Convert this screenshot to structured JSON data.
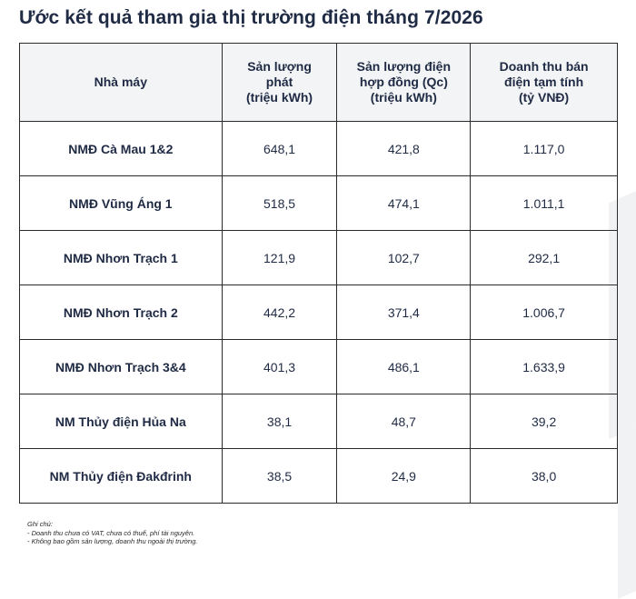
{
  "title": "Ước kết quả tham gia thị trường điện tháng 7/2026",
  "table": {
    "headers": [
      [
        "Nhà máy"
      ],
      [
        "Sản lượng",
        "phát",
        "(triệu kWh)"
      ],
      [
        "Sản lượng điện",
        "hợp đồng (Qc)",
        "(triệu kWh)"
      ],
      [
        "Doanh thu bán",
        "điện tạm tính",
        "(tỷ VNĐ)"
      ]
    ],
    "rows": [
      [
        "NMĐ Cà Mau 1&2",
        "648,1",
        "421,8",
        "1.117,0"
      ],
      [
        "NMĐ Vũng Áng 1",
        "518,5",
        "474,1",
        "1.011,1"
      ],
      [
        "NMĐ Nhơn Trạch 1",
        "121,9",
        "102,7",
        "292,1"
      ],
      [
        "NMĐ Nhơn Trạch 2",
        "442,2",
        "371,4",
        "1.006,7"
      ],
      [
        "NMĐ Nhơn Trạch 3&4",
        "401,3",
        "486,1",
        "1.633,9"
      ],
      [
        "NM Thủy điện Hủa Na",
        "38,1",
        "48,7",
        "39,2"
      ],
      [
        "NM Thủy điện Đakđrinh",
        "38,5",
        "24,9",
        "38,0"
      ]
    ]
  },
  "notes": {
    "heading": "Ghi chú:",
    "items": [
      "- Doanh thu chưa có VAT, chưa có thuế, phí tài nguyên.",
      "- Không bao gồm sản lượng, doanh thu ngoài thị trường."
    ]
  }
}
